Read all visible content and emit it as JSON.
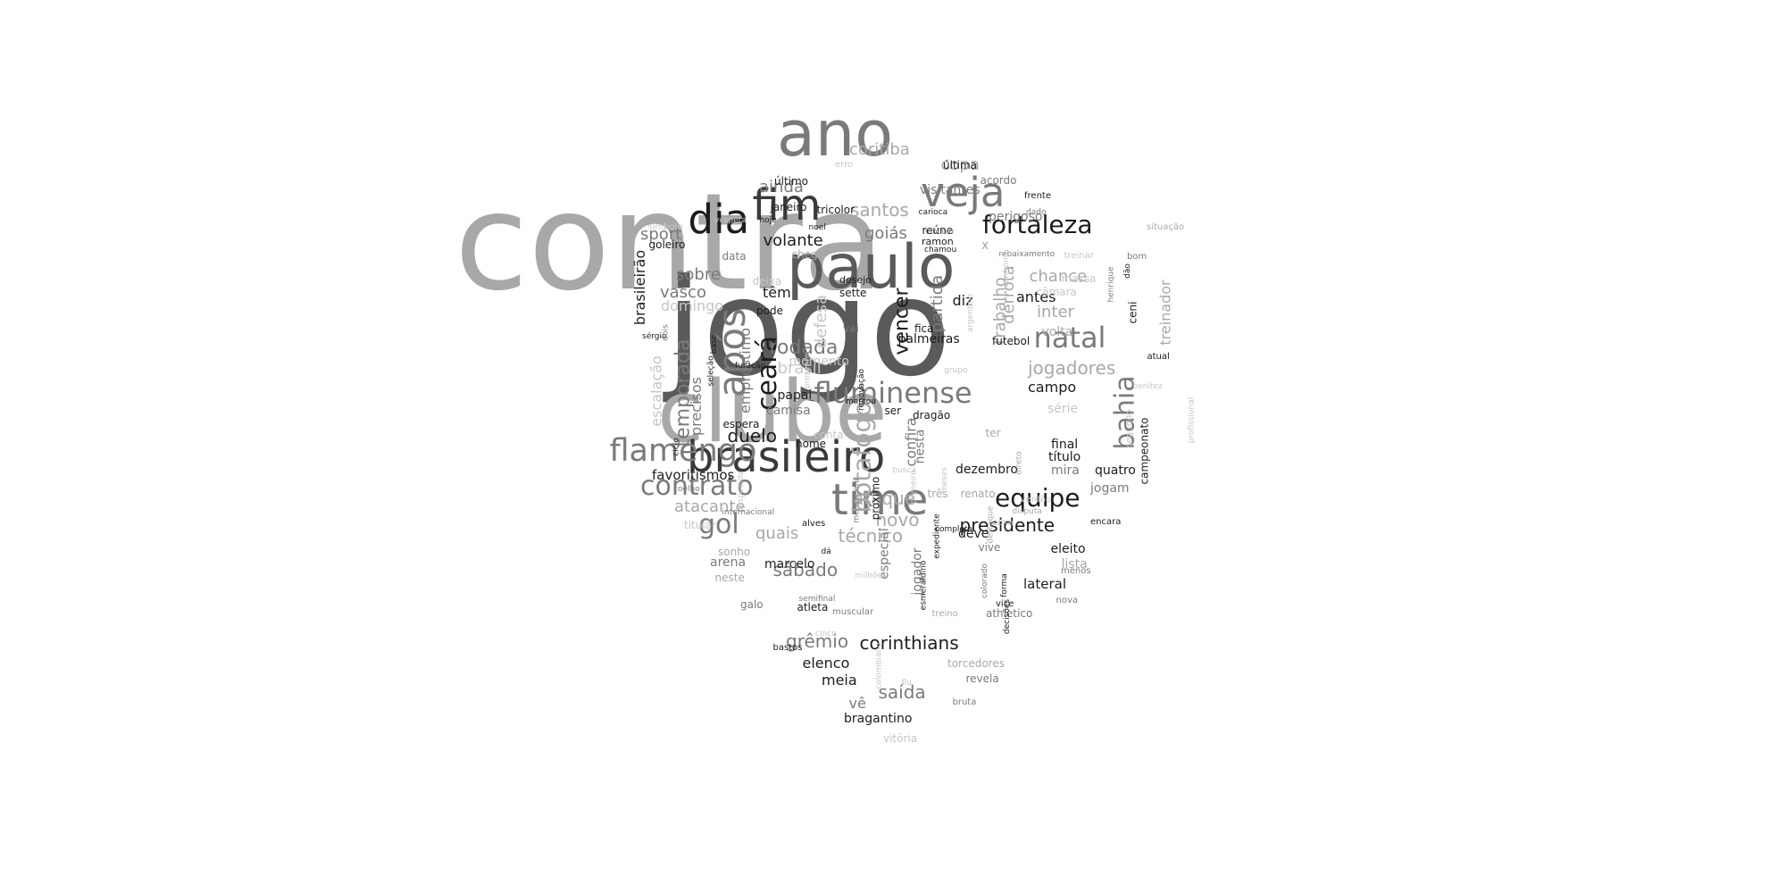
{
  "word_cloud": {
    "colors": {
      "background": "#ffffff",
      "black": "#1c1c1c",
      "dark": "#3a3a3a",
      "mid": "#5a5a5a",
      "grey": "#7a7a7a",
      "light": "#a8a8a8",
      "pale": "#c6c6c6"
    },
    "words": [
      {
        "text": "contra",
        "tone": "light",
        "rotated": false
      },
      {
        "text": "jogo",
        "tone": "mid",
        "rotated": false
      },
      {
        "text": "clube",
        "tone": "light",
        "rotated": false
      },
      {
        "text": "paulo",
        "tone": "mid",
        "rotated": false
      },
      {
        "text": "ano",
        "tone": "grey",
        "rotated": false
      },
      {
        "text": "brasileiro",
        "tone": "dark",
        "rotated": false
      },
      {
        "text": "time",
        "tone": "grey",
        "rotated": false
      },
      {
        "text": "fim",
        "tone": "dark",
        "rotated": false
      },
      {
        "text": "dia",
        "tone": "black",
        "rotated": false
      },
      {
        "text": "veja",
        "tone": "grey",
        "rotated": false
      },
      {
        "text": "após",
        "tone": "grey",
        "rotated": true
      },
      {
        "text": "fortaleza",
        "tone": "black",
        "rotated": false
      },
      {
        "text": "natal",
        "tone": "grey",
        "rotated": false
      },
      {
        "text": "flamengo",
        "tone": "grey",
        "rotated": false
      },
      {
        "text": "fluminense",
        "tone": "grey",
        "rotated": false
      },
      {
        "text": "contrato",
        "tone": "grey",
        "rotated": false
      },
      {
        "text": "equipe",
        "tone": "black",
        "rotated": false
      },
      {
        "text": "bahia",
        "tone": "grey",
        "rotated": true
      },
      {
        "text": "ceará",
        "tone": "black",
        "rotated": true
      },
      {
        "text": "botafogo",
        "tone": "light",
        "rotated": true
      },
      {
        "text": "rodada",
        "tone": "grey",
        "rotated": false
      },
      {
        "text": "jogadores",
        "tone": "light",
        "rotated": false
      },
      {
        "text": "gol",
        "tone": "grey",
        "rotated": false
      },
      {
        "text": "corinthians",
        "tone": "black",
        "rotated": false
      },
      {
        "text": "presidente",
        "tone": "black",
        "rotated": false
      },
      {
        "text": "ataque",
        "tone": "light",
        "rotated": false
      },
      {
        "text": "santos",
        "tone": "light",
        "rotated": false
      },
      {
        "text": "coritiba",
        "tone": "light",
        "rotated": false
      },
      {
        "text": "grêmio",
        "tone": "grey",
        "rotated": false
      },
      {
        "text": "sábado",
        "tone": "grey",
        "rotated": false
      },
      {
        "text": "saída",
        "tone": "grey",
        "rotated": false
      },
      {
        "text": "temporada",
        "tone": "grey",
        "rotated": true
      },
      {
        "text": "vencer",
        "tone": "black",
        "rotated": true
      },
      {
        "text": "novo",
        "tone": "light",
        "rotated": false
      },
      {
        "text": "técnico",
        "tone": "light",
        "rotated": false
      },
      {
        "text": "duelo",
        "tone": "black",
        "rotated": false
      },
      {
        "text": "brasil",
        "tone": "pale",
        "rotated": false
      },
      {
        "text": "trabalho",
        "tone": "light",
        "rotated": true
      },
      {
        "text": "goiás",
        "tone": "grey",
        "rotated": false
      },
      {
        "text": "volante",
        "tone": "black",
        "rotated": false
      },
      {
        "text": "copa",
        "tone": "light",
        "rotated": false
      },
      {
        "text": "chance",
        "tone": "light",
        "rotated": false
      },
      {
        "text": "inter",
        "tone": "light",
        "rotated": false
      },
      {
        "text": "atacante",
        "tone": "light",
        "rotated": false
      },
      {
        "text": "vasco",
        "tone": "grey",
        "rotated": false
      },
      {
        "text": "sobre",
        "tone": "grey",
        "rotated": false
      },
      {
        "text": "ainda",
        "tone": "grey",
        "rotated": false
      },
      {
        "text": "sport",
        "tone": "grey",
        "rotated": false
      },
      {
        "text": "antes",
        "tone": "black",
        "rotated": false
      },
      {
        "text": "campo",
        "tone": "black",
        "rotated": false
      },
      {
        "text": "elenco",
        "tone": "black",
        "rotated": false
      },
      {
        "text": "meia",
        "tone": "black",
        "rotated": false
      },
      {
        "text": "diz",
        "tone": "black",
        "rotated": false
      },
      {
        "text": "têm",
        "tone": "black",
        "rotated": false
      },
      {
        "text": "quais",
        "tone": "light",
        "rotated": false
      },
      {
        "text": "defesa",
        "tone": "pale",
        "rotated": true
      },
      {
        "text": "treinador",
        "tone": "light",
        "rotated": true
      },
      {
        "text": "brasileirão",
        "tone": "black",
        "rotated": true
      },
      {
        "text": "domingo",
        "tone": "pale",
        "rotated": false
      },
      {
        "text": "escalação",
        "tone": "pale",
        "rotated": true
      },
      {
        "text": "precisos",
        "tone": "grey",
        "rotated": true
      },
      {
        "text": "empréstimo",
        "tone": "grey",
        "rotated": true
      },
      {
        "text": "favoritismos",
        "tone": "black",
        "rotated": false
      },
      {
        "text": "lateral",
        "tone": "black",
        "rotated": false
      },
      {
        "text": "final",
        "tone": "black",
        "rotated": false
      },
      {
        "text": "título",
        "tone": "black",
        "rotated": false
      },
      {
        "text": "dezembro",
        "tone": "black",
        "rotated": false
      },
      {
        "text": "eleito",
        "tone": "black",
        "rotated": false
      },
      {
        "text": "deve",
        "tone": "black",
        "rotated": false
      },
      {
        "text": "jogam",
        "tone": "grey",
        "rotated": false
      },
      {
        "text": "mira",
        "tone": "grey",
        "rotated": false
      },
      {
        "text": "quatro",
        "tone": "black",
        "rotated": false
      },
      {
        "text": "lista",
        "tone": "light",
        "rotated": false
      },
      {
        "text": "vê",
        "tone": "grey",
        "rotated": false
      },
      {
        "text": "bragantino",
        "tone": "black",
        "rotated": false
      },
      {
        "text": "confira",
        "tone": "grey",
        "rotated": true
      },
      {
        "text": "papai",
        "tone": "black",
        "rotated": false
      },
      {
        "text": "camisa",
        "tone": "grey",
        "rotated": false
      },
      {
        "text": "marcelo",
        "tone": "black",
        "rotated": false
      },
      {
        "text": "arena",
        "tone": "grey",
        "rotated": false
      },
      {
        "text": "sonho",
        "tone": "light",
        "rotated": false
      },
      {
        "text": "neste",
        "tone": "light",
        "rotated": false
      },
      {
        "text": "titular",
        "tone": "pale",
        "rotated": false
      },
      {
        "text": "vai",
        "tone": "grey",
        "rotated": false
      },
      {
        "text": "data",
        "tone": "grey",
        "rotated": false
      },
      {
        "text": "pode",
        "tone": "black",
        "rotated": false
      },
      {
        "text": "deixa",
        "tone": "pale",
        "rotated": false
      },
      {
        "text": "sette",
        "tone": "black",
        "rotated": false
      },
      {
        "text": "desejo",
        "tone": "black",
        "rotated": false
      },
      {
        "text": "visitantes",
        "tone": "grey",
        "rotated": false
      },
      {
        "text": "acordo",
        "tone": "grey",
        "rotated": false
      },
      {
        "text": "última",
        "tone": "black",
        "rotated": false
      },
      {
        "text": "último",
        "tone": "black",
        "rotated": false
      },
      {
        "text": "janeiro",
        "tone": "black",
        "rotated": false
      },
      {
        "text": "tricolor",
        "tone": "black",
        "rotated": false
      },
      {
        "text": "perigoso",
        "tone": "grey",
        "rotated": false
      },
      {
        "text": "reúne",
        "tone": "black",
        "rotated": false
      },
      {
        "text": "ramon",
        "tone": "black",
        "rotated": false
      },
      {
        "text": "x",
        "tone": "light",
        "rotated": false
      },
      {
        "text": "chega",
        "tone": "light",
        "rotated": false
      },
      {
        "text": "goleiro",
        "tone": "black",
        "rotated": false
      },
      {
        "text": "câmara",
        "tone": "pale",
        "rotated": false
      },
      {
        "text": "volta",
        "tone": "light",
        "rotated": false
      },
      {
        "text": "série",
        "tone": "pale",
        "rotated": false
      },
      {
        "text": "campeonato",
        "tone": "black",
        "rotated": true
      },
      {
        "text": "palmeiras",
        "tone": "black",
        "rotated": false
      },
      {
        "text": "futebol",
        "tone": "black",
        "rotated": false
      },
      {
        "text": "fica",
        "tone": "black",
        "rotated": false
      },
      {
        "text": "partida",
        "tone": "grey",
        "rotated": true
      },
      {
        "text": "derrota",
        "tone": "light",
        "rotated": true
      },
      {
        "text": "momento",
        "tone": "pale",
        "rotated": false
      },
      {
        "text": "espera",
        "tone": "black",
        "rotated": false
      },
      {
        "text": "nome",
        "tone": "black",
        "rotated": false
      },
      {
        "text": "conta",
        "tone": "pale",
        "rotated": false
      },
      {
        "text": "dragão",
        "tone": "black",
        "rotated": false
      },
      {
        "text": "ter",
        "tone": "light",
        "rotated": false
      },
      {
        "text": "três",
        "tone": "light",
        "rotated": false
      },
      {
        "text": "renato",
        "tone": "light",
        "rotated": false
      },
      {
        "text": "próximo",
        "tone": "black",
        "rotated": true
      },
      {
        "text": "nesta",
        "tone": "grey",
        "rotated": true
      },
      {
        "text": "ser",
        "tone": "black",
        "rotated": false
      },
      {
        "text": "especial",
        "tone": "grey",
        "rotated": true
      },
      {
        "text": "jogador",
        "tone": "grey",
        "rotated": true
      },
      {
        "text": "vive",
        "tone": "grey",
        "rotated": false
      },
      {
        "text": "atleta",
        "tone": "black",
        "rotated": false
      },
      {
        "text": "athletico",
        "tone": "grey",
        "rotated": false
      },
      {
        "text": "torcedores",
        "tone": "light",
        "rotated": false
      },
      {
        "text": "revela",
        "tone": "grey",
        "rotated": false
      },
      {
        "text": "bruta",
        "tone": "grey",
        "rotated": false
      },
      {
        "text": "vitória",
        "tone": "pale",
        "rotated": false
      },
      {
        "text": "galo",
        "tone": "grey",
        "rotated": false
      },
      {
        "text": "bastos",
        "tone": "black",
        "rotated": false
      },
      {
        "text": "muscular",
        "tone": "grey",
        "rotated": false
      },
      {
        "text": "treino",
        "tone": "light",
        "rotated": false
      },
      {
        "text": "menos",
        "tone": "grey",
        "rotated": false
      },
      {
        "text": "nova",
        "tone": "grey",
        "rotated": false
      },
      {
        "text": "vice",
        "tone": "black",
        "rotated": false
      },
      {
        "text": "alves",
        "tone": "black",
        "rotated": false
      },
      {
        "text": "coxa",
        "tone": "light",
        "rotated": false
      },
      {
        "text": "encara",
        "tone": "black",
        "rotated": false
      },
      {
        "text": "verdão",
        "tone": "pale",
        "rotated": false
      },
      {
        "text": "segundo",
        "tone": "pale",
        "rotated": true
      },
      {
        "text": "atual",
        "tone": "black",
        "rotated": false
      },
      {
        "text": "benítez",
        "tone": "pale",
        "rotated": false
      },
      {
        "text": "profissional",
        "tone": "pale",
        "rotated": true
      },
      {
        "text": "ceni",
        "tone": "black",
        "rotated": true
      },
      {
        "text": "massa",
        "tone": "pale",
        "rotated": false
      },
      {
        "text": "bom",
        "tone": "grey",
        "rotated": false
      },
      {
        "text": "situação",
        "tone": "light",
        "rotated": false
      },
      {
        "text": "treinar",
        "tone": "pale",
        "rotated": false
      },
      {
        "text": "rebaixamento",
        "tone": "grey",
        "rotated": false
      },
      {
        "text": "dado",
        "tone": "grey",
        "rotated": false
      },
      {
        "text": "frente",
        "tone": "black",
        "rotated": false
      },
      {
        "text": "carioca",
        "tone": "black",
        "rotated": false
      },
      {
        "text": "vínculo",
        "tone": "grey",
        "rotated": false
      },
      {
        "text": "chamou",
        "tone": "black",
        "rotated": false
      },
      {
        "text": "erro",
        "tone": "pale",
        "rotated": false
      },
      {
        "text": "noel",
        "tone": "black",
        "rotated": false
      },
      {
        "text": "hoje",
        "tone": "black",
        "rotated": false
      },
      {
        "text": "véspera",
        "tone": "pale",
        "rotated": false
      },
      {
        "text": "símbolo",
        "tone": "pale",
        "rotated": false
      },
      {
        "text": "sérgio",
        "tone": "black",
        "rotated": false
      },
      {
        "text": "dois",
        "tone": "grey",
        "rotated": true
      },
      {
        "text": "base",
        "tone": "black",
        "rotated": true
      },
      {
        "text": "furacão",
        "tone": "black",
        "rotated": false
      },
      {
        "text": "seleção",
        "tone": "black",
        "rotated": true
      },
      {
        "text": "presente",
        "tone": "pale",
        "rotated": true
      },
      {
        "text": "marcou",
        "tone": "black",
        "rotated": false
      },
      {
        "text": "renovação",
        "tone": "black",
        "rotated": true
      },
      {
        "text": "ciclo",
        "tone": "black",
        "rotated": true
      },
      {
        "text": "coelho",
        "tone": "grey",
        "rotated": false
      },
      {
        "text": "despedida",
        "tone": "pale",
        "rotated": true
      },
      {
        "text": "internacional",
        "tone": "grey",
        "rotated": false
      },
      {
        "text": "semifinal",
        "tone": "grey",
        "rotated": false
      },
      {
        "text": "dá",
        "tone": "black",
        "rotated": false
      },
      {
        "text": "milhões",
        "tone": "pale",
        "rotated": false
      },
      {
        "text": "mensagem",
        "tone": "grey",
        "rotated": true
      },
      {
        "text": "busca",
        "tone": "pale",
        "rotated": false
      },
      {
        "text": "primeiro",
        "tone": "pale",
        "rotated": true
      },
      {
        "text": "esmeraldino",
        "tone": "black",
        "rotated": true
      },
      {
        "text": "expediente",
        "tone": "black",
        "rotated": true
      },
      {
        "text": "forma",
        "tone": "black",
        "rotated": true
      },
      {
        "text": "destaque",
        "tone": "light",
        "rotated": true
      },
      {
        "text": "decisões",
        "tone": "black",
        "rotated": true
      },
      {
        "text": "completa",
        "tone": "black",
        "rotated": false
      },
      {
        "text": "colorado",
        "tone": "grey",
        "rotated": true
      },
      {
        "text": "disputa",
        "tone": "light",
        "rotated": false
      },
      {
        "text": "direto",
        "tone": "light",
        "rotated": true
      },
      {
        "text": "meses",
        "tone": "pale",
        "rotated": true
      },
      {
        "text": "grupo",
        "tone": "pale",
        "rotated": false
      },
      {
        "text": "confronto",
        "tone": "pale",
        "rotated": true
      },
      {
        "text": "argentino",
        "tone": "pale",
        "rotated": true
      },
      {
        "text": "henrique",
        "tone": "grey",
        "rotated": true
      },
      {
        "text": "dão",
        "tone": "black",
        "rotated": true
      },
      {
        "text": "cinco",
        "tone": "pale",
        "rotated": false
      },
      {
        "text": "colombiano",
        "tone": "pale",
        "rotated": true
      },
      {
        "text": "flu",
        "tone": "pale",
        "rotated": false
      },
      {
        "text": "ramírez",
        "tone": "pale",
        "rotated": false
      },
      {
        "text": "formação",
        "tone": "pale",
        "rotated": false
      },
      {
        "text": "justiça",
        "tone": "pale",
        "rotated": false
      }
    ]
  }
}
